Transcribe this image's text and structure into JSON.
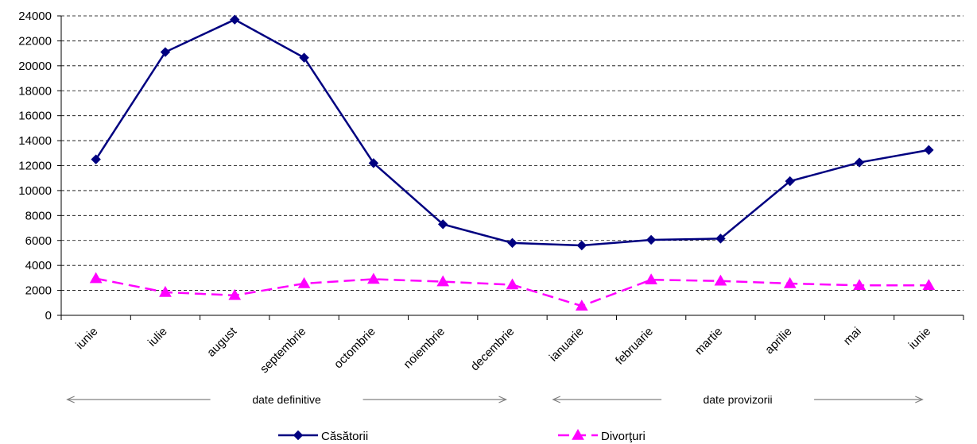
{
  "chart_data": {
    "type": "line",
    "categories": [
      "iunie",
      "iulie",
      "august",
      "septembrie",
      "octombrie",
      "noiembrie",
      "decembrie",
      "ianuarie",
      "februarie",
      "martie",
      "aprilie",
      "mai",
      "iunie"
    ],
    "series": [
      {
        "name": "Căsătorii",
        "color": "#000080",
        "marker": "diamond",
        "line_style": "solid",
        "values": [
          12500,
          21100,
          23700,
          20650,
          12200,
          7300,
          5800,
          5600,
          6050,
          6150,
          10750,
          12250,
          13250
        ]
      },
      {
        "name": "Divorţuri",
        "color": "#FF00FF",
        "marker": "triangle",
        "line_style": "dashed",
        "values": [
          2950,
          1850,
          1600,
          2550,
          2900,
          2700,
          2450,
          750,
          2850,
          2750,
          2550,
          2400,
          2400
        ]
      }
    ],
    "ylim": [
      0,
      24000
    ],
    "yticks": [
      "0",
      "2000",
      "4000",
      "6000",
      "8000",
      "10000",
      "12000",
      "14000",
      "16000",
      "18000",
      "20000",
      "22000",
      "24000"
    ],
    "grid": true,
    "legend_position": "bottom",
    "annotations": [
      {
        "text": "date definitive",
        "from_category": 0,
        "to_category": 6
      },
      {
        "text": "date provizorii",
        "from_category": 7,
        "to_category": 12
      }
    ]
  }
}
